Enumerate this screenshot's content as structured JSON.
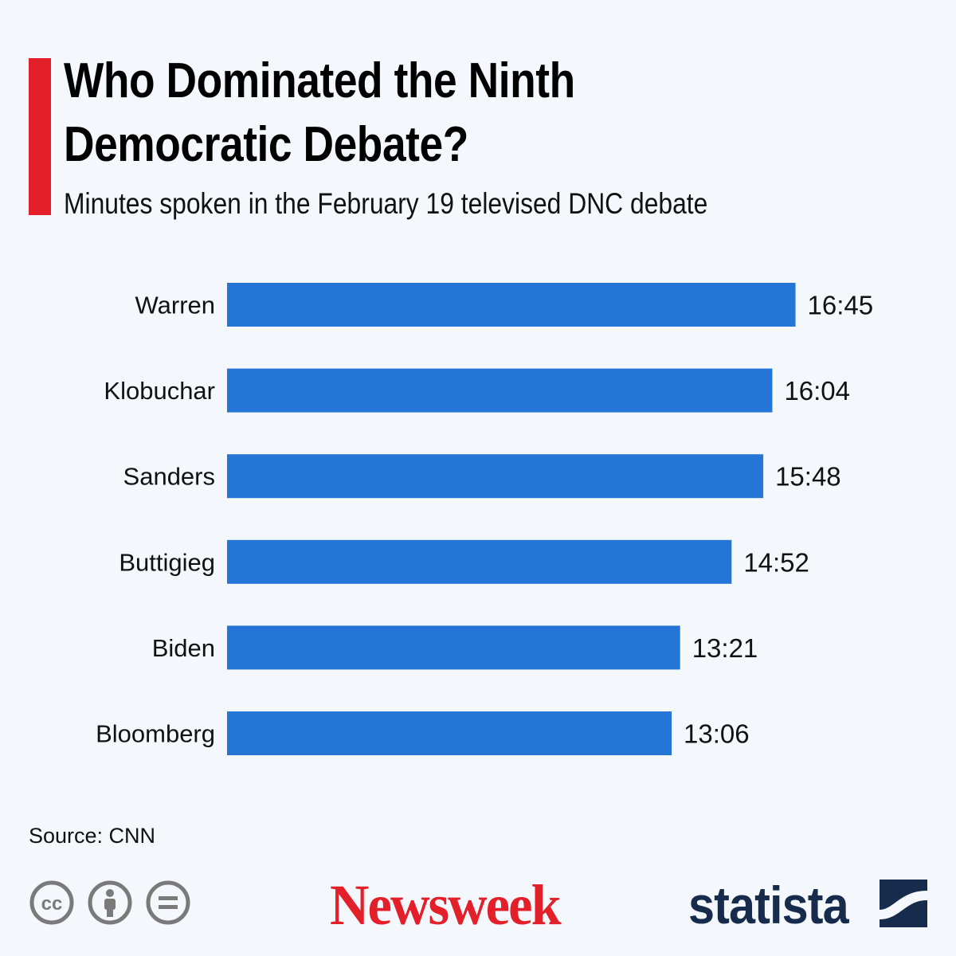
{
  "header": {
    "title": "Who Dominated the Ninth Democratic Debate?",
    "subtitle": "Minutes spoken in the February 19 televised DNC debate"
  },
  "chart_data": {
    "type": "bar",
    "orientation": "horizontal",
    "title": "Who Dominated the Ninth Democratic Debate?",
    "subtitle": "Minutes spoken in the February 19 televised DNC debate",
    "categories": [
      "Warren",
      "Klobuchar",
      "Sanders",
      "Buttigieg",
      "Biden",
      "Bloomberg"
    ],
    "values": [
      16.75,
      16.0667,
      15.8,
      14.8667,
      13.35,
      13.1
    ],
    "value_labels": [
      "16:45",
      "16:04",
      "15:48",
      "14:52",
      "13:21",
      "13:06"
    ],
    "unit": "minutes",
    "xlim": [
      0,
      17
    ],
    "grid": false,
    "bar_color": "#2475d6"
  },
  "footer": {
    "source": "Source: CNN",
    "brand_left": "Newsweek",
    "brand_right": "statista",
    "icons": [
      "creative-commons-icon",
      "attribution-person-icon",
      "no-derivatives-icon"
    ]
  },
  "colors": {
    "accent": "#e3202a",
    "background": "#f4f7fb",
    "statista_navy": "#172b4d",
    "icon_gray": "#7a7a7a"
  }
}
